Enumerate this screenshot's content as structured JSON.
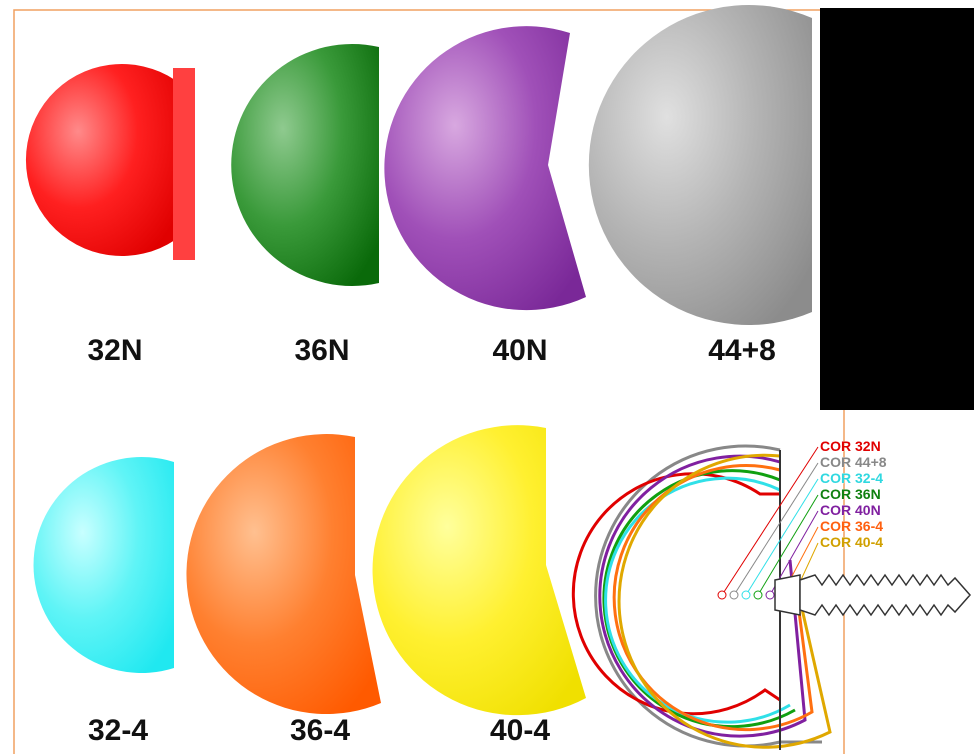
{
  "heads": {
    "top": [
      {
        "label": "32N"
      },
      {
        "label": "36N"
      },
      {
        "label": "40N"
      },
      {
        "label": "44+8"
      }
    ],
    "bottom": [
      {
        "label": "32-4"
      },
      {
        "label": "36-4"
      },
      {
        "label": "40-4"
      }
    ]
  },
  "legend": [
    "COR 32N",
    "COR 44+8",
    "COR 32-4",
    "COR 36N",
    "COR 40N",
    "COR 36-4",
    "COR 40-4"
  ]
}
